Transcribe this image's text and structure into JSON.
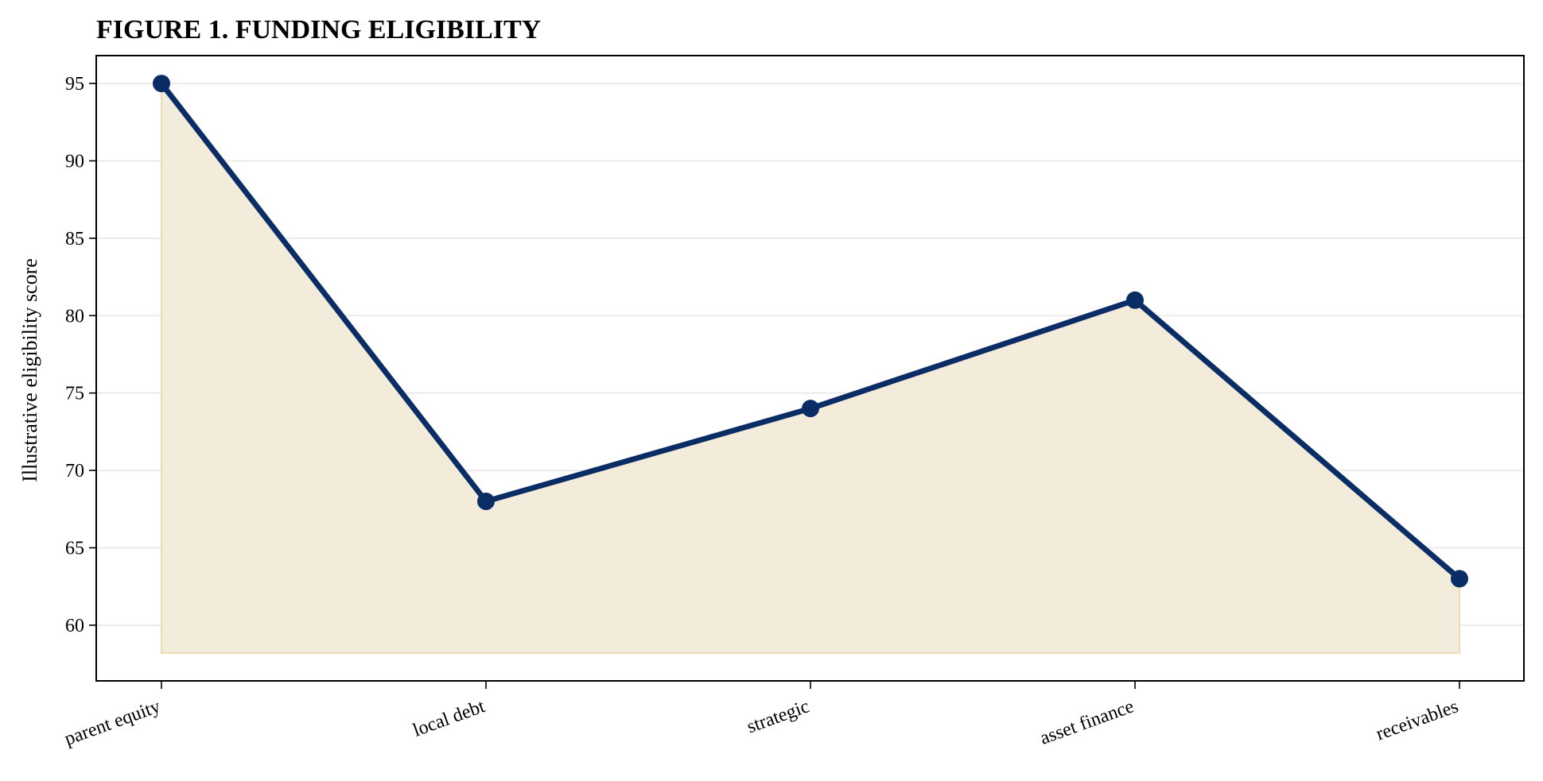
{
  "chart_data": {
    "type": "area",
    "title": "FIGURE 1. FUNDING ELIGIBILITY",
    "xlabel": "",
    "ylabel": "Illustrative eligibility score",
    "categories": [
      "parent equity",
      "local debt",
      "strategic",
      "asset finance",
      "receivables"
    ],
    "series": [
      {
        "values": [
          95,
          68,
          74,
          81,
          63
        ]
      }
    ],
    "ylim": [
      56.4,
      96.8
    ],
    "yticks": [
      60,
      65,
      70,
      75,
      80,
      85,
      90,
      95
    ],
    "fill_baseline": 58.2,
    "grid": "horizontal",
    "legend": "none",
    "colors": {
      "line": "#0b2d66",
      "fill": "#f3ecdb",
      "fill_edge": "#ecdcb6",
      "grid": "#ebebeb",
      "axis": "#000000"
    }
  }
}
